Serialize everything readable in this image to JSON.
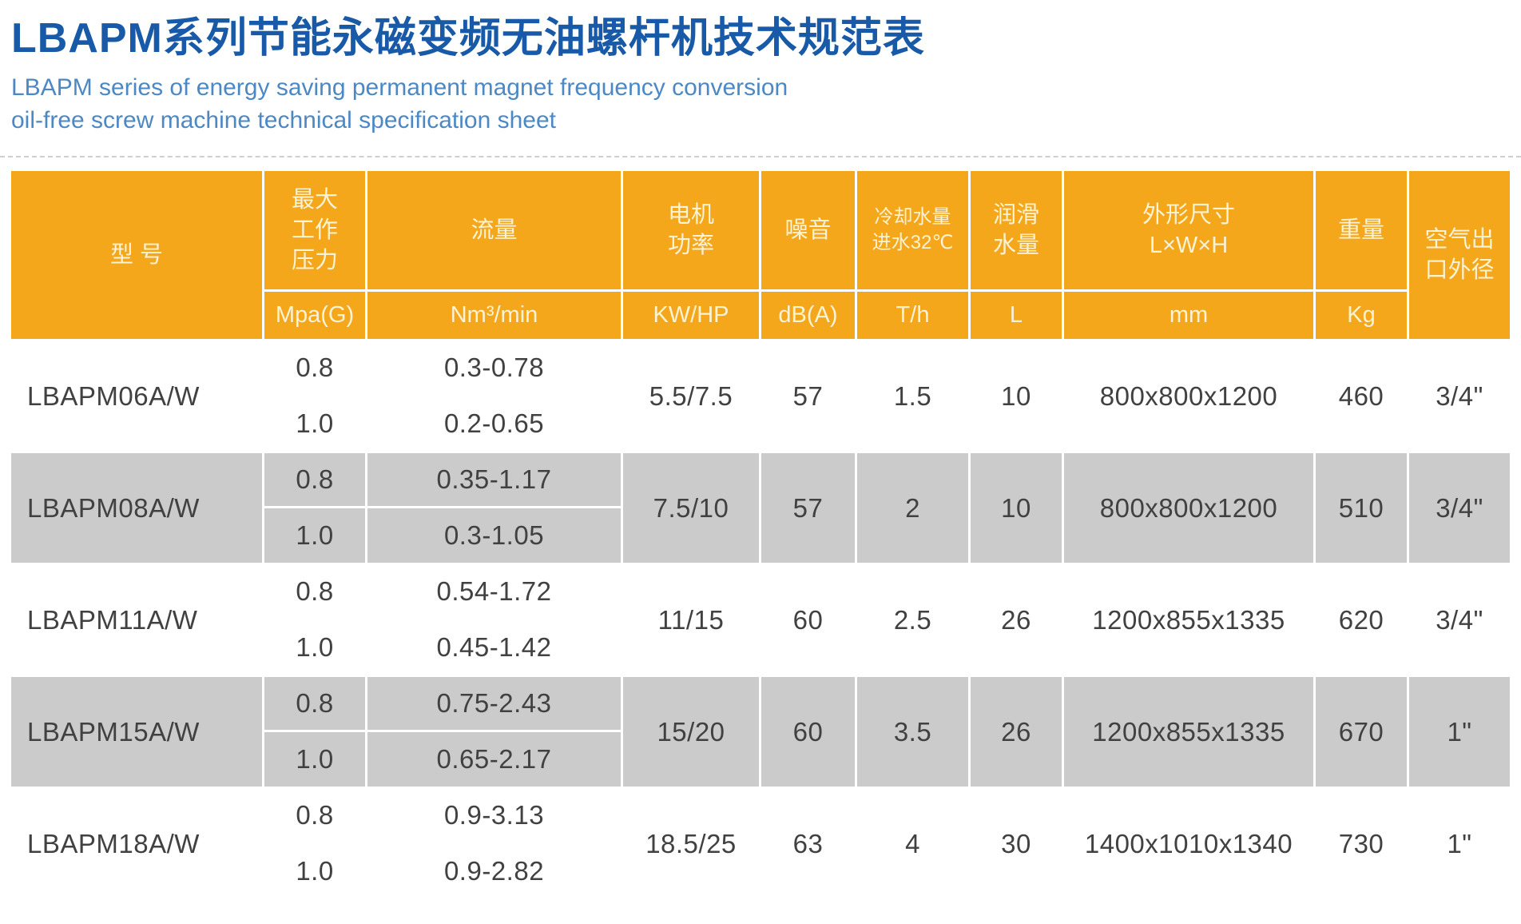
{
  "page": {
    "title": "LBAPM系列节能永磁变频无油螺杆机技术规范表",
    "subtitle": "LBAPM series of energy saving permanent magnet frequency conversion\noil-free screw machine technical specification sheet"
  },
  "colors": {
    "header_orange": "#F4A71B",
    "row_gray": "#CBCBCB",
    "title_blue": "#185AA7",
    "subtitle_blue": "#4C88C4",
    "header_text": "#FCF2D4",
    "data_text": "#414141"
  },
  "table": {
    "headers": {
      "model": "型  号",
      "pressure_label": "最大\n工作\n压力",
      "pressure_unit": "Mpa(G)",
      "flow_label": "流量",
      "flow_unit": "Nm³/min",
      "power_label": "电机\n功率",
      "power_unit": "KW/HP",
      "noise_label": "噪音",
      "noise_unit": "dB(A)",
      "cooling_label": "冷却水量\n进水32℃",
      "cooling_unit": "T/h",
      "lube_label": "润滑\n水量",
      "lube_unit": "L",
      "dims_label": "外形尺寸\nL×W×H",
      "dims_unit": "mm",
      "weight_label": "重量",
      "weight_unit": "Kg",
      "outlet_label": "空气出\n口外径"
    },
    "rows": [
      {
        "model": "LBAPM06A/W",
        "variants": [
          {
            "pressure": "0.8",
            "flow": "0.3-0.78"
          },
          {
            "pressure": "1.0",
            "flow": "0.2-0.65"
          }
        ],
        "power": "5.5/7.5",
        "noise": "57",
        "cooling": "1.5",
        "lube": "10",
        "dims": "800x800x1200",
        "weight": "460",
        "outlet": "3/4\""
      },
      {
        "model": "LBAPM08A/W",
        "variants": [
          {
            "pressure": "0.8",
            "flow": "0.35-1.17"
          },
          {
            "pressure": "1.0",
            "flow": "0.3-1.05"
          }
        ],
        "power": "7.5/10",
        "noise": "57",
        "cooling": "2",
        "lube": "10",
        "dims": "800x800x1200",
        "weight": "510",
        "outlet": "3/4\""
      },
      {
        "model": "LBAPM11A/W",
        "variants": [
          {
            "pressure": "0.8",
            "flow": "0.54-1.72"
          },
          {
            "pressure": "1.0",
            "flow": "0.45-1.42"
          }
        ],
        "power": "11/15",
        "noise": "60",
        "cooling": "2.5",
        "lube": "26",
        "dims": "1200x855x1335",
        "weight": "620",
        "outlet": "3/4\""
      },
      {
        "model": "LBAPM15A/W",
        "variants": [
          {
            "pressure": "0.8",
            "flow": "0.75-2.43"
          },
          {
            "pressure": "1.0",
            "flow": "0.65-2.17"
          }
        ],
        "power": "15/20",
        "noise": "60",
        "cooling": "3.5",
        "lube": "26",
        "dims": "1200x855x1335",
        "weight": "670",
        "outlet": "1\""
      },
      {
        "model": "LBAPM18A/W",
        "variants": [
          {
            "pressure": "0.8",
            "flow": "0.9-3.13"
          },
          {
            "pressure": "1.0",
            "flow": "0.9-2.82"
          }
        ],
        "power": "18.5/25",
        "noise": "63",
        "cooling": "4",
        "lube": "30",
        "dims": "1400x1010x1340",
        "weight": "730",
        "outlet": "1\""
      }
    ]
  }
}
